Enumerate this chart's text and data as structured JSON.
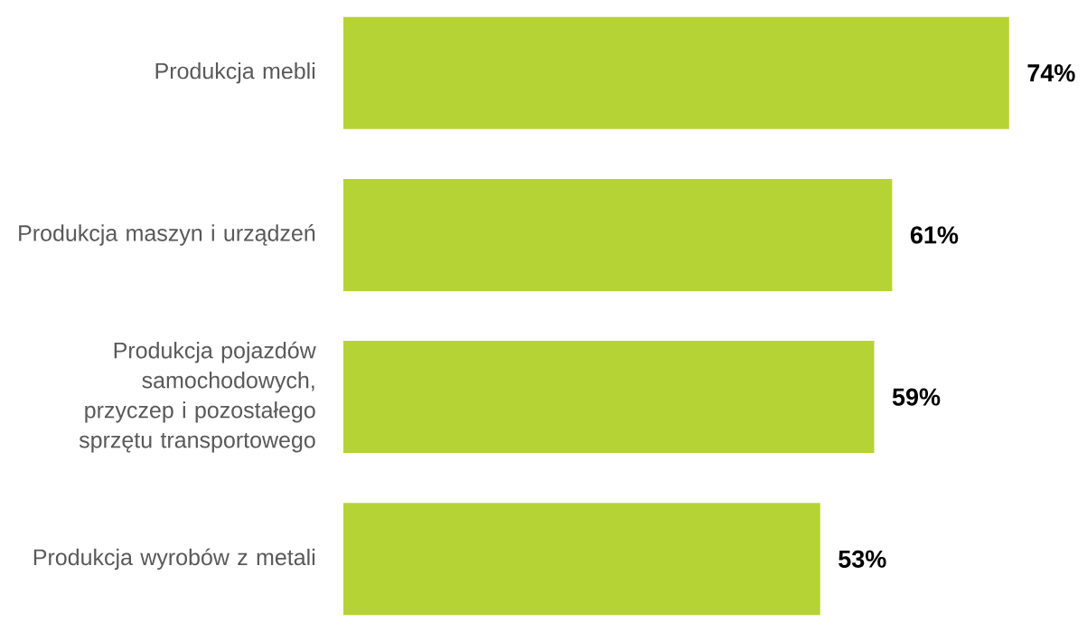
{
  "chart_data": {
    "type": "bar",
    "orientation": "horizontal",
    "categories": [
      "Produkcja mebli",
      "Produkcja maszyn i urządzeń",
      "Produkcja pojazdów samochodowych, przyczep i pozostałego sprzętu transportowego",
      "Produkcja wyrobów z metali"
    ],
    "values": [
      74,
      61,
      59,
      53
    ],
    "value_labels": [
      "74%",
      "61%",
      "59%",
      "53%"
    ],
    "color": "#b5d334",
    "tick_labels": "y"
  }
}
